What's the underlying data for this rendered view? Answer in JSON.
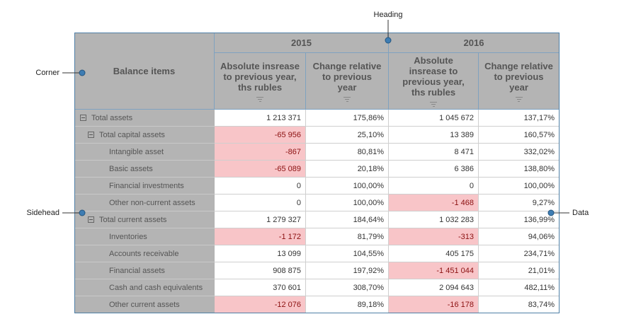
{
  "callouts": {
    "heading": "Heading",
    "corner": "Corner",
    "sidehead": "Sidehead",
    "data": "Data"
  },
  "table": {
    "corner": "Balance items",
    "years": [
      "2015",
      "2016"
    ],
    "columns": [
      "Absolute insrease to previous year, ths rubles",
      "Change relative to previous year",
      "Absolute insrease to previous year, ths rubles",
      "Change relative to previous year"
    ],
    "rows": [
      {
        "label": "Total assets",
        "level": 0,
        "values": [
          "1 213 371",
          "175,86%",
          "1 045 672",
          "137,17%"
        ]
      },
      {
        "label": "Total capital assets",
        "level": 1,
        "values": [
          "-65 956",
          "25,10%",
          "13 389",
          "160,57%"
        ]
      },
      {
        "label": "Intangible asset",
        "level": 2,
        "values": [
          "-867",
          "80,81%",
          "8 471",
          "332,02%"
        ]
      },
      {
        "label": "Basic assets",
        "level": 2,
        "values": [
          "-65 089",
          "20,18%",
          "6 386",
          "138,80%"
        ]
      },
      {
        "label": "Financial investments",
        "level": 2,
        "values": [
          "0",
          "100,00%",
          "0",
          "100,00%"
        ]
      },
      {
        "label": "Other non-current assets",
        "level": 2,
        "values": [
          "0",
          "100,00%",
          "-1 468",
          "9,27%"
        ]
      },
      {
        "label": "Total current assets",
        "level": 1,
        "values": [
          "1 279 327",
          "184,64%",
          "1 032 283",
          "136,99%"
        ]
      },
      {
        "label": "Inventories",
        "level": 2,
        "values": [
          "-1 172",
          "81,79%",
          "-313",
          "94,06%"
        ]
      },
      {
        "label": "Accounts receivable",
        "level": 2,
        "values": [
          "13 099",
          "104,55%",
          "405 175",
          "234,71%"
        ]
      },
      {
        "label": "Financial assets",
        "level": 2,
        "values": [
          "908 875",
          "197,92%",
          "-1 451 044",
          "21,01%"
        ]
      },
      {
        "label": "Cash and cash equivalents",
        "level": 2,
        "values": [
          "370 601",
          "308,70%",
          "2 094 643",
          "482,11%"
        ]
      },
      {
        "label": "Other current assets",
        "level": 2,
        "values": [
          "-12 076",
          "89,18%",
          "-16 178",
          "83,74%"
        ]
      }
    ]
  }
}
